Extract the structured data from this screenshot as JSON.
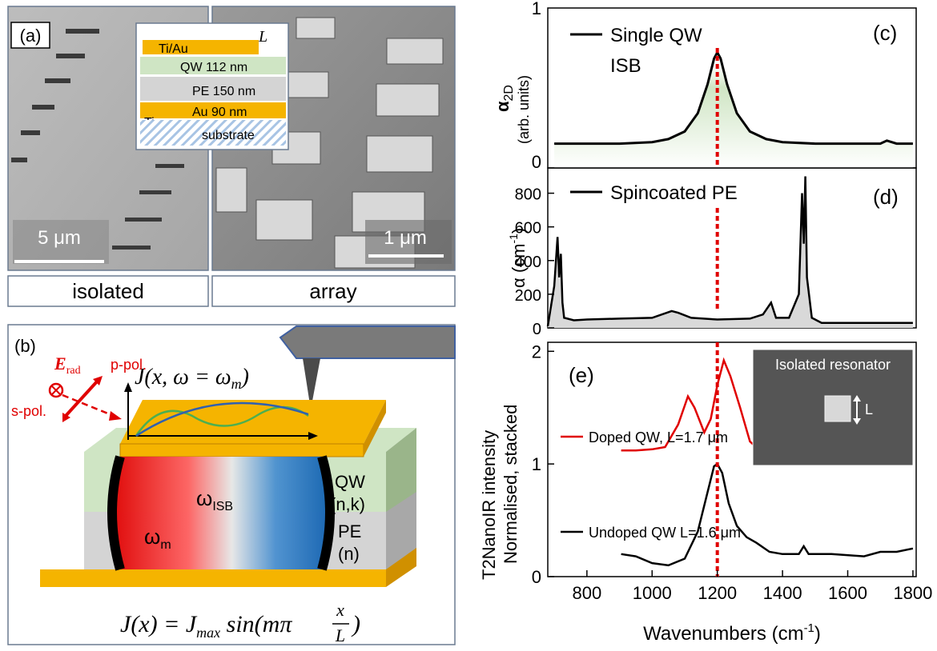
{
  "panels": {
    "a": {
      "label": "(a)",
      "caption_left": "isolated",
      "caption_right": "array",
      "scale_left": "5 μm",
      "scale_right": "1 μm",
      "inset": {
        "L": "L",
        "layers": [
          "Ti/Au",
          "QW 112 nm",
          "PE 150 nm",
          "Au 90 nm",
          "Ti",
          "substrate"
        ]
      }
    },
    "b": {
      "label": "(b)",
      "e_rad": "E",
      "e_rad_sub": "rad",
      "p_pol": "p-pol.",
      "s_pol": "s-pol.",
      "current_label": "J(x, ω = ω",
      "current_sub": "m",
      "omega_m": "ω",
      "omega_m_sub": "m",
      "omega_isb": "ω",
      "omega_isb_sub": "ISB",
      "qw": "QW",
      "qw_nk": "(n,k)",
      "pe": "PE",
      "pe_n": "(n)",
      "formula": "J(x) = J",
      "formula_sub": "max",
      "formula_rest": " sin(mπ ",
      "formula_num": "x",
      "formula_den": "L",
      "formula_close": ")"
    },
    "c": {
      "label": "(c)",
      "legend": "Single QW",
      "legend2": "ISB",
      "ylabel": "α",
      "ylabel_sub": "2D",
      "ylabel_units": "(arb. units)"
    },
    "d": {
      "label": "(d)",
      "legend": "Spincoated PE",
      "ylabel": "α (cm",
      "ylabel_sup": "-1",
      "ylabel_close": ")"
    },
    "e": {
      "label": "(e)",
      "ylabel1": "T2NanoIR intensity",
      "ylabel2": "Normalised, stacked",
      "inset_title": "Isolated resonator",
      "inset_L": "L",
      "xlabel": "Wavenumbers (cm",
      "xlabel_sup": "-1",
      "xlabel_close": ")"
    }
  },
  "chart_data": [
    {
      "type": "area",
      "panel": "c",
      "legend": [
        "Single QW ISB"
      ],
      "x": [
        700,
        800,
        900,
        1000,
        1050,
        1100,
        1140,
        1170,
        1190,
        1200,
        1210,
        1230,
        1260,
        1300,
        1350,
        1400,
        1500,
        1600,
        1700,
        1720,
        1750,
        1800
      ],
      "series": [
        {
          "name": "Single QW ISB",
          "color": "#000000",
          "values": [
            0.16,
            0.16,
            0.16,
            0.17,
            0.19,
            0.24,
            0.36,
            0.55,
            0.72,
            0.76,
            0.72,
            0.55,
            0.36,
            0.24,
            0.19,
            0.17,
            0.16,
            0.16,
            0.16,
            0.18,
            0.16,
            0.16
          ]
        }
      ],
      "ylim": [
        0,
        1
      ],
      "yticks": [
        "0",
        "1"
      ],
      "xlim": [
        680,
        1810
      ],
      "marker_line_x": 1200
    },
    {
      "type": "area",
      "panel": "d",
      "legend": [
        "Spincoated PE"
      ],
      "x": [
        680,
        700,
        710,
        715,
        720,
        725,
        730,
        740,
        760,
        800,
        900,
        1000,
        1060,
        1080,
        1120,
        1200,
        1300,
        1340,
        1365,
        1380,
        1420,
        1450,
        1460,
        1465,
        1470,
        1475,
        1490,
        1520,
        1600,
        1700,
        1800
      ],
      "series": [
        {
          "name": "Spincoated PE",
          "color": "#000000",
          "values": [
            10,
            250,
            540,
            300,
            440,
            150,
            60,
            55,
            45,
            50,
            55,
            60,
            100,
            90,
            60,
            50,
            55,
            80,
            150,
            60,
            60,
            200,
            800,
            500,
            900,
            300,
            60,
            30,
            30,
            30,
            30
          ]
        }
      ],
      "ylim": [
        0,
        950
      ],
      "yticks": [
        "0",
        "200",
        "400",
        "600",
        "800"
      ],
      "xlim": [
        680,
        1810
      ],
      "marker_line_x": 1200
    },
    {
      "type": "line",
      "panel": "e",
      "x_label": "Wavenumbers (cm-1)",
      "xticks": [
        "800",
        "1000",
        "1200",
        "1400",
        "1600",
        "1800"
      ],
      "yticks": [
        "0",
        "1",
        "2"
      ],
      "xlim": [
        680,
        1810
      ],
      "ylim": [
        0,
        2.08
      ],
      "marker_line_x": 1200,
      "series": [
        {
          "name": "Doped QW, L=1.7 μm",
          "color": "#e00000",
          "x": [
            905,
            950,
            1000,
            1040,
            1080,
            1110,
            1130,
            1160,
            1180,
            1200,
            1220,
            1240,
            1270,
            1300,
            1330,
            1360,
            1400,
            1460,
            1500,
            1600,
            1700,
            1800
          ],
          "values": [
            1.12,
            1.12,
            1.13,
            1.15,
            1.35,
            1.6,
            1.5,
            1.28,
            1.4,
            1.7,
            1.92,
            1.78,
            1.5,
            1.2,
            1.12,
            1.12,
            1.12,
            1.13,
            1.12,
            1.12,
            1.14,
            1.13
          ]
        },
        {
          "name": "Undoped QW L=1.6 μm",
          "color": "#000000",
          "x": [
            905,
            950,
            1000,
            1050,
            1100,
            1140,
            1170,
            1190,
            1200,
            1215,
            1235,
            1260,
            1290,
            1320,
            1360,
            1400,
            1450,
            1465,
            1480,
            1550,
            1650,
            1700,
            1750,
            1800
          ],
          "values": [
            0.2,
            0.18,
            0.12,
            0.1,
            0.16,
            0.4,
            0.75,
            0.98,
            1.0,
            0.92,
            0.65,
            0.45,
            0.35,
            0.3,
            0.22,
            0.2,
            0.2,
            0.27,
            0.2,
            0.2,
            0.18,
            0.22,
            0.22,
            0.25
          ]
        }
      ]
    }
  ]
}
